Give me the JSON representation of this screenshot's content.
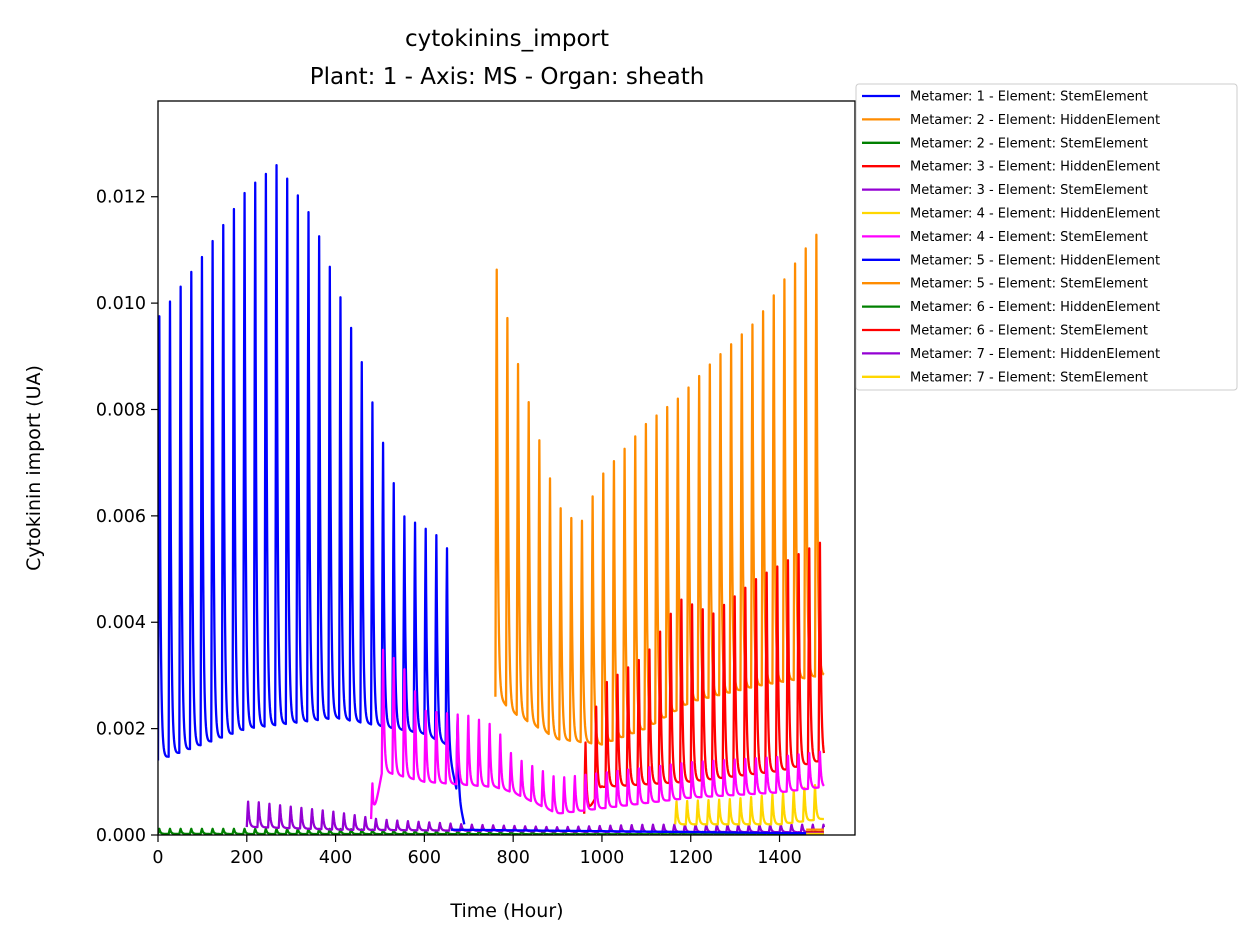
{
  "chart_data": {
    "type": "line",
    "title": "cytokinins_import",
    "subtitle": "Plant: 1 - Axis: MS - Organ: sheath",
    "xlabel": "Time (Hour)",
    "ylabel": "Cytokinin import (UA)",
    "xlim": [
      0,
      1570
    ],
    "ylim": [
      0,
      0.0138
    ],
    "xticks": [
      0,
      200,
      400,
      600,
      800,
      1000,
      1200,
      1400
    ],
    "xtick_labels": [
      "0",
      "200",
      "400",
      "600",
      "800",
      "1000",
      "1200",
      "1400"
    ],
    "yticks": [
      0,
      0.002,
      0.004,
      0.006,
      0.008,
      0.01,
      0.012
    ],
    "ytick_labels": [
      "0.000",
      "0.002",
      "0.004",
      "0.006",
      "0.008",
      "0.010",
      "0.012"
    ],
    "grid": false,
    "legend_position": "outside-top-right",
    "series": [
      {
        "name": "Metamer: 1 - Element: StemElement",
        "color": "#0000ff",
        "start": 0,
        "end": 690,
        "period": 24,
        "peaks": [
          [
            0,
            0.0101
          ],
          [
            100,
            0.0113
          ],
          [
            200,
            0.0126
          ],
          [
            270,
            0.0131
          ],
          [
            350,
            0.012
          ],
          [
            450,
            0.0095
          ],
          [
            550,
            0.0062
          ],
          [
            650,
            0.0057
          ],
          [
            690,
            0.0002
          ]
        ],
        "troughs": [
          [
            0,
            0.0014
          ],
          [
            200,
            0.002
          ],
          [
            400,
            0.0022
          ],
          [
            600,
            0.0019
          ],
          [
            650,
            0.0017
          ],
          [
            690,
            0.0002
          ]
        ]
      },
      {
        "name": "Metamer: 2 - Element: HiddenElement",
        "color": "#ff8c00",
        "start": 760,
        "end": 1500,
        "period": 24,
        "peaks": [
          [
            765,
            0.011
          ],
          [
            800,
            0.0095
          ],
          [
            900,
            0.0064
          ],
          [
            950,
            0.006
          ],
          [
            1000,
            0.007
          ],
          [
            1100,
            0.008
          ],
          [
            1175,
            0.0085
          ],
          [
            1250,
            0.0092
          ],
          [
            1350,
            0.01
          ],
          [
            1450,
            0.0113
          ],
          [
            1495,
            0.0118
          ]
        ],
        "troughs": [
          [
            765,
            0.0026
          ],
          [
            800,
            0.0023
          ],
          [
            900,
            0.0018
          ],
          [
            1000,
            0.0017
          ],
          [
            1100,
            0.002
          ],
          [
            1200,
            0.0025
          ],
          [
            1350,
            0.0028
          ],
          [
            1495,
            0.003
          ]
        ]
      },
      {
        "name": "Metamer: 2 - Element: StemElement",
        "color": "#008000",
        "start": 0,
        "end": 1500,
        "period": 24,
        "peaks": [
          [
            0,
            0.00012
          ],
          [
            400,
            0.00012
          ],
          [
            600,
            8e-05
          ],
          [
            1500,
            5e-05
          ]
        ],
        "troughs": [
          [
            0,
            2e-05
          ],
          [
            1500,
            1e-05
          ]
        ]
      },
      {
        "name": "Metamer: 3 - Element: HiddenElement",
        "color": "#ff0000",
        "start": 960,
        "end": 1500,
        "period": 24,
        "peaks": [
          [
            965,
            0.0018
          ],
          [
            1000,
            0.0029
          ],
          [
            1100,
            0.0035
          ],
          [
            1175,
            0.0046
          ],
          [
            1250,
            0.0043
          ],
          [
            1350,
            0.005
          ],
          [
            1450,
            0.0055
          ],
          [
            1495,
            0.0057
          ]
        ],
        "troughs": [
          [
            965,
            0.0004
          ],
          [
            1000,
            0.0009
          ],
          [
            1200,
            0.001
          ],
          [
            1400,
            0.0012
          ],
          [
            1495,
            0.0014
          ]
        ]
      },
      {
        "name": "Metamer: 3 - Element: StemElement",
        "color": "#9400d3",
        "start": 200,
        "end": 1500,
        "period": 24,
        "peaks": [
          [
            215,
            0.00065
          ],
          [
            300,
            0.00055
          ],
          [
            400,
            0.00045
          ],
          [
            500,
            0.0003
          ],
          [
            700,
            0.0002
          ],
          [
            900,
            0.00015
          ],
          [
            1100,
            0.0002
          ],
          [
            1400,
            0.0002
          ],
          [
            1500,
            0.0002
          ]
        ],
        "troughs": [
          [
            215,
            0.00015
          ],
          [
            400,
            0.0001
          ],
          [
            700,
            8e-05
          ],
          [
            1000,
            6e-05
          ],
          [
            1500,
            5e-05
          ]
        ]
      },
      {
        "name": "Metamer: 4 - Element: HiddenElement",
        "color": "#ffd700",
        "start": 1165,
        "end": 1500,
        "period": 24,
        "peaks": [
          [
            1170,
            0.00065
          ],
          [
            1300,
            0.0007
          ],
          [
            1400,
            0.0008
          ],
          [
            1495,
            0.001
          ]
        ],
        "troughs": [
          [
            1170,
            0.0002
          ],
          [
            1400,
            0.0002
          ],
          [
            1495,
            0.0003
          ]
        ]
      },
      {
        "name": "Metamer: 4 - Element: StemElement",
        "color": "#ff00ff",
        "start": 480,
        "end": 1500,
        "period": 24,
        "peaks": [
          [
            485,
            0.001
          ],
          [
            505,
            0.0036
          ],
          [
            550,
            0.0033
          ],
          [
            600,
            0.0024
          ],
          [
            700,
            0.0023
          ],
          [
            760,
            0.0021
          ],
          [
            800,
            0.0015
          ],
          [
            900,
            0.0011
          ],
          [
            1000,
            0.0012
          ],
          [
            1200,
            0.0014
          ],
          [
            1400,
            0.0015
          ],
          [
            1495,
            0.0016
          ]
        ],
        "troughs": [
          [
            485,
            0.0003
          ],
          [
            505,
            0.0012
          ],
          [
            600,
            0.001
          ],
          [
            760,
            0.0009
          ],
          [
            800,
            0.0008
          ],
          [
            900,
            0.0004
          ],
          [
            1000,
            0.0005
          ],
          [
            1200,
            0.0007
          ],
          [
            1400,
            0.0008
          ],
          [
            1495,
            0.0009
          ]
        ]
      },
      {
        "name": "Metamer: 5 - Element: HiddenElement",
        "color": "#0000ff",
        "start": 660,
        "end": 1500,
        "period": 0,
        "peaks": [
          [
            660,
            0.0001
          ],
          [
            1500,
            3e-05
          ]
        ],
        "troughs": [
          [
            660,
            0.0001
          ],
          [
            1500,
            3e-05
          ]
        ]
      },
      {
        "name": "Metamer: 5 - Element: StemElement",
        "color": "#ff8c00",
        "start": 1460,
        "end": 1500,
        "period": 0,
        "peaks": [
          [
            1460,
            0.0001
          ],
          [
            1500,
            0.0001
          ]
        ],
        "troughs": [
          [
            1460,
            0.0001
          ],
          [
            1500,
            0.0001
          ]
        ]
      },
      {
        "name": "Metamer: 6 - Element: HiddenElement",
        "color": "#008000",
        "start": 1460,
        "end": 1500,
        "period": 0,
        "peaks": [
          [
            1460,
            5e-05
          ],
          [
            1500,
            5e-05
          ]
        ],
        "troughs": [
          [
            1460,
            5e-05
          ],
          [
            1500,
            5e-05
          ]
        ]
      },
      {
        "name": "Metamer: 6 - Element: StemElement",
        "color": "#ff0000",
        "start": 1460,
        "end": 1500,
        "period": 0,
        "peaks": [
          [
            1460,
            5e-05
          ],
          [
            1500,
            5e-05
          ]
        ],
        "troughs": [
          [
            1460,
            5e-05
          ],
          [
            1500,
            5e-05
          ]
        ]
      },
      {
        "name": "Metamer: 7 - Element: HiddenElement",
        "color": "#9400d3",
        "start": 1460,
        "end": 1500,
        "period": 0,
        "peaks": [
          [
            1460,
            3e-05
          ],
          [
            1500,
            3e-05
          ]
        ],
        "troughs": [
          [
            1460,
            3e-05
          ],
          [
            1500,
            3e-05
          ]
        ]
      },
      {
        "name": "Metamer: 7 - Element: StemElement",
        "color": "#ffd700",
        "start": 1460,
        "end": 1500,
        "period": 0,
        "peaks": [
          [
            1460,
            2e-05
          ],
          [
            1500,
            2e-05
          ]
        ],
        "troughs": [
          [
            1460,
            2e-05
          ],
          [
            1500,
            2e-05
          ]
        ]
      }
    ]
  }
}
